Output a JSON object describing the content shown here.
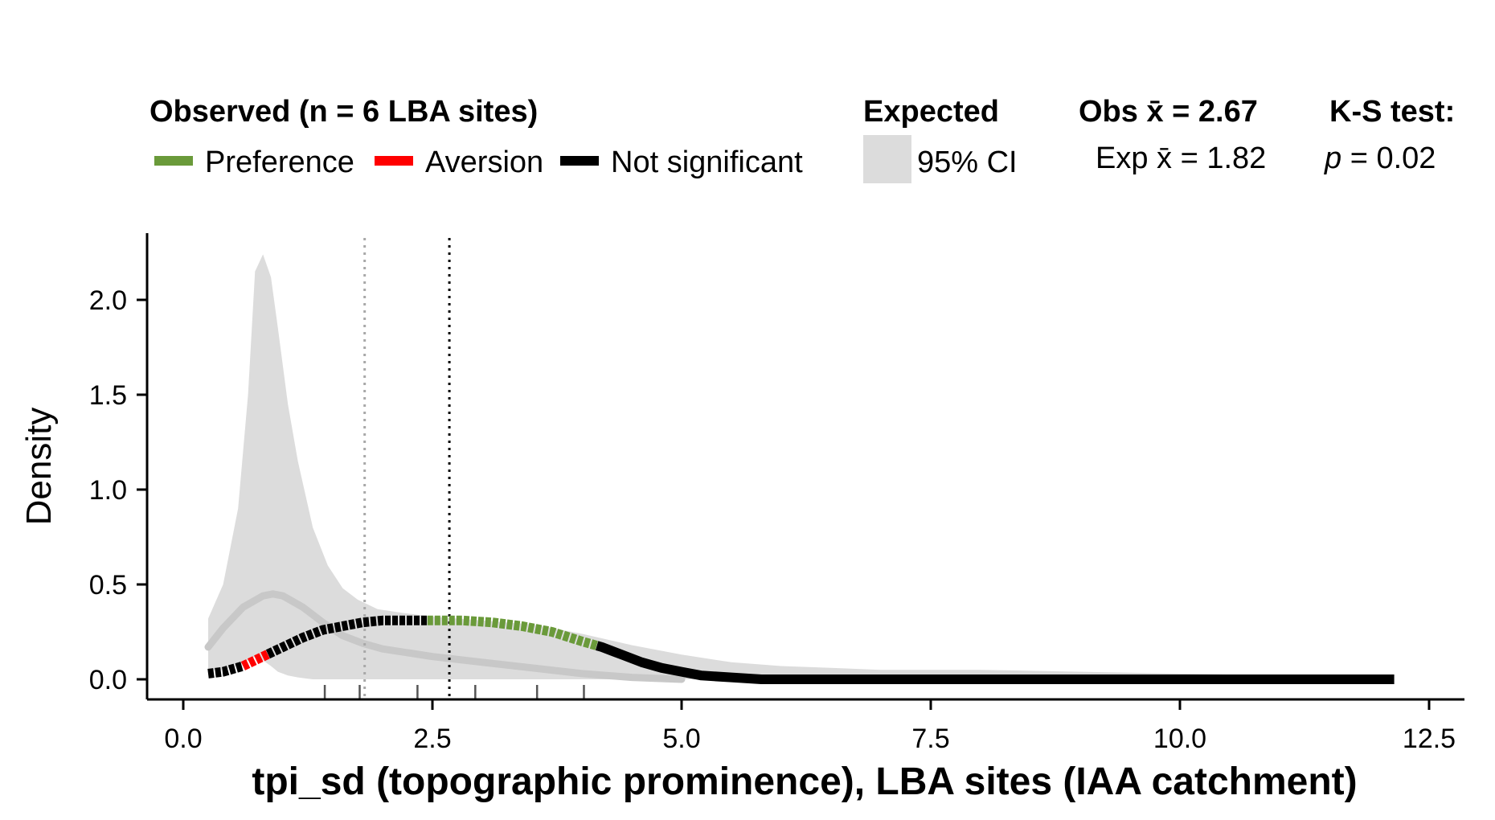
{
  "chart_data": {
    "type": "area",
    "title": "",
    "xlabel": "tpi_sd (topographic prominence), LBA sites (IAA catchment)",
    "ylabel": "Density",
    "xlim": [
      0,
      12.5
    ],
    "ylim": [
      0,
      2.3
    ],
    "x_ticks": [
      "0.0",
      "2.5",
      "5.0",
      "7.5",
      "10.0",
      "12.5"
    ],
    "y_ticks": [
      "0.0",
      "0.5",
      "1.0",
      "1.5",
      "2.0"
    ],
    "legend": {
      "placement": "top",
      "observed_title": "Observed (n = 6 LBA sites)",
      "observed_entries": [
        {
          "label": "Preference",
          "color": "#6a9a3a"
        },
        {
          "label": "Aversion",
          "color": "#ff0000"
        },
        {
          "label": "Not significant",
          "color": "#000000"
        }
      ],
      "expected_title": "Expected",
      "expected_entries": [
        {
          "label": "95% CI",
          "color": "#dcdcdc"
        }
      ],
      "obs_mean_label": "Obs x̄ = 2.67",
      "exp_mean_label": "Exp x̄ = 1.82",
      "ks_title": "K-S test:",
      "ks_p_symbol": "p",
      "ks_p_value": " = 0.02"
    },
    "obs_mean": 2.67,
    "exp_mean": 1.82,
    "rug_x": [
      1.42,
      1.77,
      2.35,
      2.93,
      3.55,
      4.02
    ],
    "ci_band": {
      "x": [
        0.25,
        0.4,
        0.55,
        0.65,
        0.72,
        0.8,
        0.88,
        0.95,
        1.05,
        1.15,
        1.3,
        1.45,
        1.6,
        1.75,
        1.95,
        2.2,
        2.5,
        3.0,
        3.5,
        4.0,
        4.5,
        5.0,
        5.5,
        6.0,
        6.5,
        7.0,
        8.0,
        9.0,
        10.0,
        11.0,
        12.15
      ],
      "upper": [
        0.32,
        0.5,
        0.9,
        1.5,
        2.15,
        2.24,
        2.12,
        1.85,
        1.45,
        1.15,
        0.8,
        0.6,
        0.48,
        0.42,
        0.37,
        0.35,
        0.33,
        0.31,
        0.29,
        0.24,
        0.18,
        0.13,
        0.09,
        0.07,
        0.06,
        0.05,
        0.05,
        0.04,
        0.03,
        0.02,
        0.0
      ],
      "lower": [
        0.05,
        0.05,
        0.07,
        0.1,
        0.12,
        0.1,
        0.07,
        0.04,
        0.02,
        0.01,
        0.0,
        0.0,
        0.0,
        0.0,
        0.0,
        0.0,
        0.0,
        0.0,
        0.0,
        0.0,
        0.0,
        0.0,
        0.0,
        0.0,
        0.0,
        0.0,
        0.0,
        0.0,
        0.0,
        0.0,
        0.0
      ]
    },
    "expected_mean_curve": {
      "x": [
        0.25,
        0.4,
        0.6,
        0.8,
        0.9,
        1.0,
        1.2,
        1.4,
        1.6,
        1.8,
        2.0,
        2.5,
        3.0,
        3.5,
        4.0,
        4.5,
        5.0
      ],
      "y": [
        0.17,
        0.27,
        0.38,
        0.44,
        0.45,
        0.44,
        0.38,
        0.3,
        0.23,
        0.19,
        0.16,
        0.12,
        0.09,
        0.06,
        0.03,
        0.01,
        0.0
      ]
    },
    "observed_curve": {
      "x": [
        0.25,
        0.4,
        0.6,
        0.8,
        1.0,
        1.2,
        1.4,
        1.6,
        1.8,
        2.0,
        2.2,
        2.5,
        2.8,
        3.1,
        3.4,
        3.7,
        4.0,
        4.2,
        4.4,
        4.6,
        4.8,
        5.0,
        5.2,
        5.5,
        5.8,
        7.0,
        9.0,
        12.15
      ],
      "y": [
        0.03,
        0.04,
        0.07,
        0.12,
        0.17,
        0.22,
        0.26,
        0.28,
        0.3,
        0.31,
        0.31,
        0.31,
        0.31,
        0.3,
        0.28,
        0.25,
        0.2,
        0.17,
        0.13,
        0.09,
        0.06,
        0.04,
        0.02,
        0.01,
        0.0,
        0.0,
        0.0,
        0.0
      ]
    },
    "observed_segments": [
      {
        "from": 0.25,
        "to": 0.6,
        "significance": "Not significant",
        "color": "#000000"
      },
      {
        "from": 0.6,
        "to": 0.85,
        "significance": "Aversion",
        "color": "#ff0000"
      },
      {
        "from": 0.85,
        "to": 2.45,
        "significance": "Not significant",
        "color": "#000000"
      },
      {
        "from": 2.45,
        "to": 4.15,
        "significance": "Preference",
        "color": "#6a9a3a"
      },
      {
        "from": 4.15,
        "to": 12.15,
        "significance": "Not significant",
        "color": "#000000"
      }
    ],
    "colors": {
      "ci_band": "#dcdcdc",
      "expected_mean": "#c8c8c8",
      "obs_mean_line": "#000000",
      "exp_mean_line": "#a8a8a8"
    }
  }
}
